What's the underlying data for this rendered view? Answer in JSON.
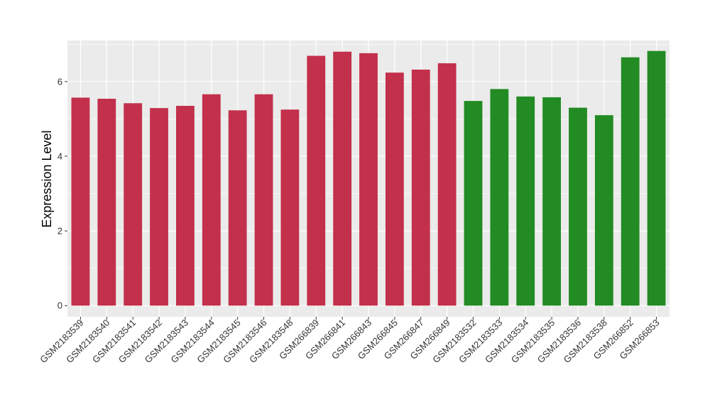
{
  "chart_data": {
    "type": "bar",
    "title": "",
    "xlabel": "",
    "ylabel": "Expression Level",
    "ylim": [
      -0.3,
      7.1
    ],
    "yticks": [
      0,
      2,
      4,
      6
    ],
    "grid": true,
    "background": "#EBEBEB",
    "grid_color": "#FFFFFF",
    "colors": {
      "group_1": "#C3304B",
      "group_2": "#238B23"
    },
    "categories": [
      "GSM2183539",
      "GSM2183540",
      "GSM2183541",
      "GSM2183542",
      "GSM2183543",
      "GSM2183544",
      "GSM2183545",
      "GSM2183546",
      "GSM2183548",
      "GSM266839",
      "GSM266841",
      "GSM266843",
      "GSM266845",
      "GSM266847",
      "GSM266849",
      "GSM2183532",
      "GSM2183533",
      "GSM2183534",
      "GSM2183535",
      "GSM2183536",
      "GSM2183538",
      "GSM266852",
      "GSM266853"
    ],
    "values": [
      5.57,
      5.54,
      5.42,
      5.29,
      5.35,
      5.66,
      5.23,
      5.66,
      5.25,
      6.69,
      6.8,
      6.76,
      6.24,
      6.32,
      6.49,
      5.48,
      5.8,
      5.6,
      5.58,
      5.3,
      5.1,
      6.65,
      6.82
    ],
    "groups": [
      "group_1",
      "group_1",
      "group_1",
      "group_1",
      "group_1",
      "group_1",
      "group_1",
      "group_1",
      "group_1",
      "group_1",
      "group_1",
      "group_1",
      "group_1",
      "group_1",
      "group_1",
      "group_2",
      "group_2",
      "group_2",
      "group_2",
      "group_2",
      "group_2",
      "group_2",
      "group_2"
    ]
  }
}
